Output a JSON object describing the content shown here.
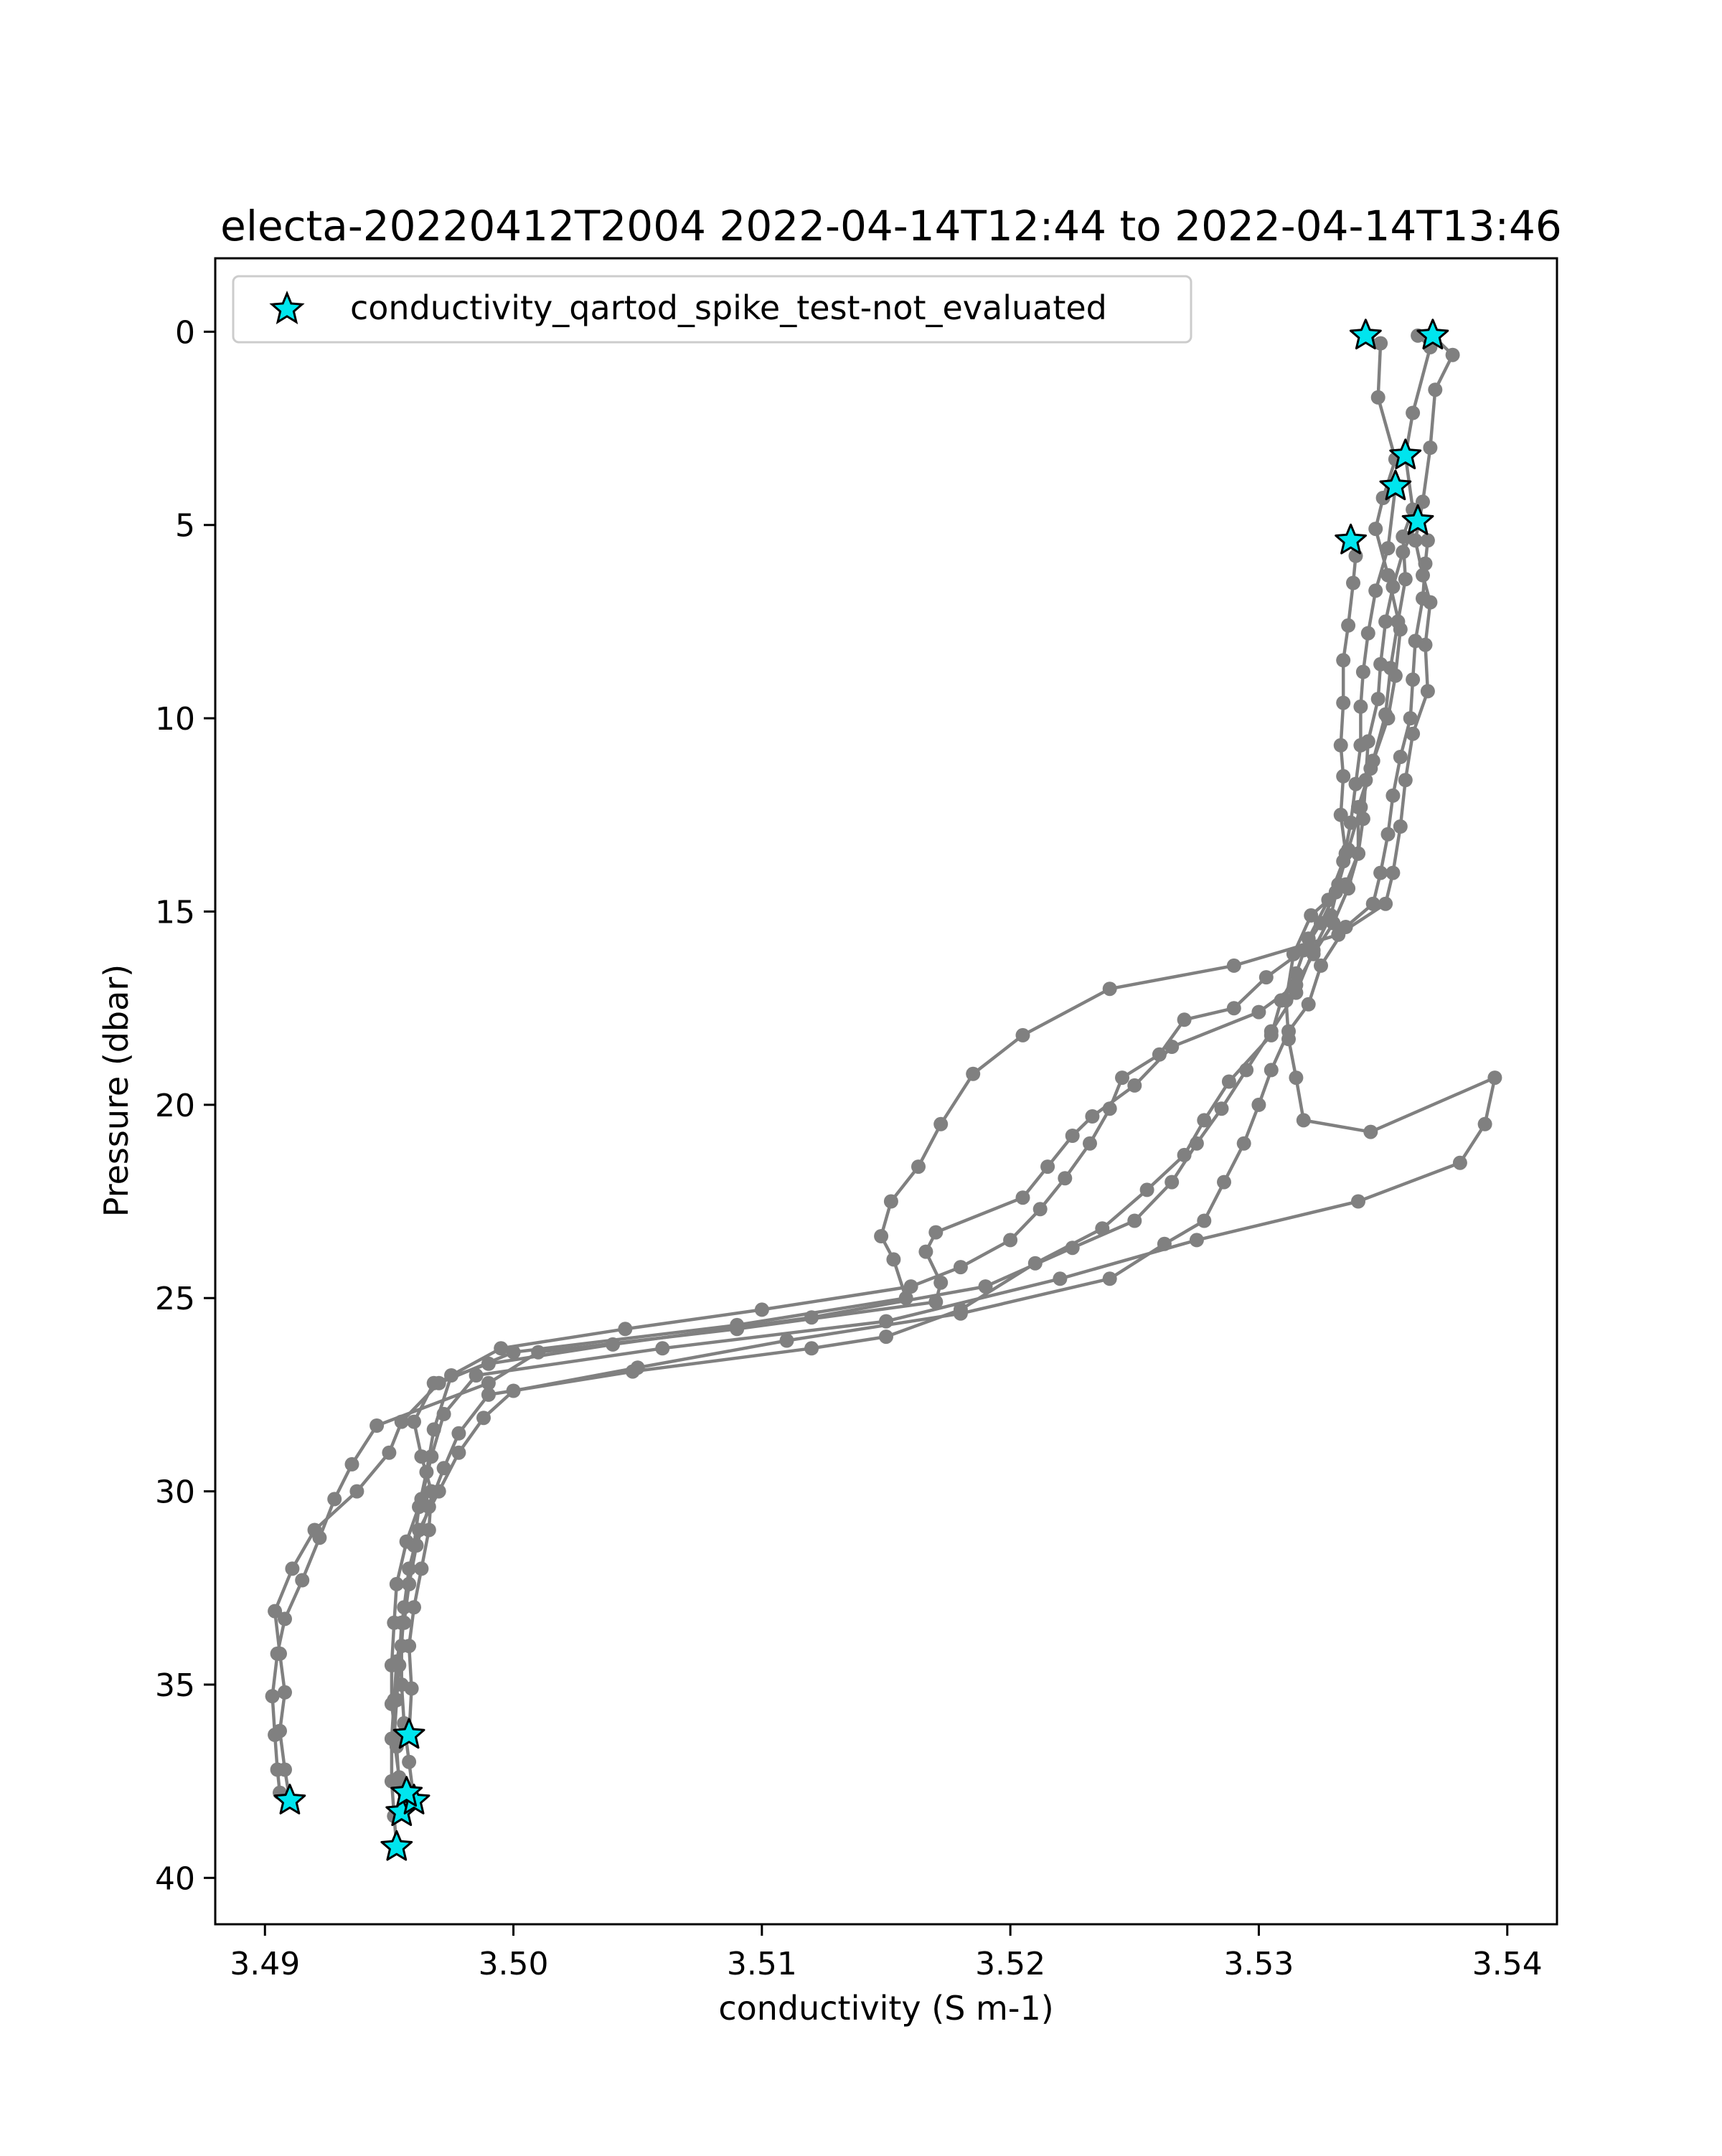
{
  "chart_data": {
    "type": "scatter",
    "title": "electa-20220412T2004 2022-04-14T12:44 to 2022-04-14T13:46",
    "xlabel": "conductivity (S m-1)",
    "ylabel": "Pressure (dbar)",
    "xlim": [
      3.488,
      3.542
    ],
    "ylim": [
      41.2,
      -1.9
    ],
    "y_inverted": true,
    "xticks": [
      3.49,
      3.5,
      3.51,
      3.52,
      3.53,
      3.54
    ],
    "xtick_labels": [
      "3.49",
      "3.50",
      "3.51",
      "3.52",
      "3.53",
      "3.54"
    ],
    "yticks": [
      0,
      5,
      10,
      15,
      20,
      25,
      30,
      35,
      40
    ],
    "ytick_labels": [
      "0",
      "5",
      "10",
      "15",
      "20",
      "25",
      "30",
      "35",
      "40"
    ],
    "grid": false,
    "legend_position": "upper-left",
    "legend": [
      {
        "label": "conductivity_qartod_spike_test-not_evaluated",
        "marker": "star",
        "color": "#00e5ee"
      }
    ],
    "line_color": "#808080",
    "flag_color": "#00e5ee",
    "series": [
      {
        "points": [
          [
            3.5343,
            0.1
          ],
          [
            3.5349,
            0.3
          ],
          [
            3.5348,
            1.7
          ],
          [
            3.5355,
            3.3
          ],
          [
            3.535,
            4.3
          ],
          [
            3.5347,
            5.1
          ],
          [
            3.5352,
            6.3
          ],
          [
            3.5357,
            7.7
          ],
          [
            3.5355,
            8.9
          ],
          [
            3.5352,
            10.0
          ],
          [
            3.5345,
            11.3
          ],
          [
            3.5341,
            12.3
          ],
          [
            3.5336,
            13.4
          ],
          [
            3.5332,
            14.3
          ],
          [
            3.5329,
            15.1
          ],
          [
            3.5322,
            16.0
          ],
          [
            3.5315,
            17.1
          ],
          [
            3.5305,
            18.1
          ],
          [
            3.5295,
            19.1
          ],
          [
            3.5285,
            20.1
          ],
          [
            3.5275,
            21.0
          ],
          [
            3.5265,
            22.0
          ],
          [
            3.525,
            23.0
          ],
          [
            3.5225,
            23.7
          ],
          [
            3.519,
            24.7
          ],
          [
            3.512,
            25.5
          ],
          [
            3.504,
            26.2
          ],
          [
            3.499,
            26.7
          ],
          [
            3.4968,
            27.2
          ],
          [
            3.496,
            28.2
          ],
          [
            3.4963,
            29.1
          ],
          [
            3.4967,
            30.0
          ],
          [
            3.4966,
            31.0
          ],
          [
            3.4963,
            32.0
          ],
          [
            3.496,
            33.0
          ],
          [
            3.4958,
            34.0
          ],
          [
            3.4959,
            35.1
          ],
          [
            3.4958,
            36.3
          ]
        ],
        "flags": [
          0,
          37
        ]
      },
      {
        "points": [
          [
            3.537,
            0.1
          ],
          [
            3.5378,
            0.6
          ],
          [
            3.5371,
            1.5
          ],
          [
            3.5369,
            3.0
          ],
          [
            3.5366,
            4.4
          ],
          [
            3.5363,
            5.4
          ],
          [
            3.5366,
            6.3
          ],
          [
            3.5369,
            7.0
          ],
          [
            3.5367,
            8.1
          ],
          [
            3.5368,
            9.3
          ],
          [
            3.5362,
            10.4
          ],
          [
            3.5359,
            11.6
          ],
          [
            3.5357,
            12.8
          ],
          [
            3.5354,
            14.0
          ],
          [
            3.5351,
            14.8
          ],
          [
            3.5332,
            15.6
          ],
          [
            3.529,
            16.4
          ],
          [
            3.524,
            17.0
          ],
          [
            3.5205,
            18.2
          ],
          [
            3.5185,
            19.2
          ],
          [
            3.5172,
            20.5
          ],
          [
            3.5163,
            21.6
          ],
          [
            3.5152,
            22.5
          ],
          [
            3.5148,
            23.4
          ],
          [
            3.5153,
            24.0
          ],
          [
            3.5158,
            25.0
          ],
          [
            3.509,
            25.7
          ],
          [
            3.5,
            26.4
          ],
          [
            3.497,
            27.2
          ],
          [
            3.4955,
            28.2
          ],
          [
            3.495,
            29.0
          ],
          [
            3.4937,
            30.0
          ],
          [
            3.492,
            31.0
          ],
          [
            3.4911,
            32.0
          ],
          [
            3.4904,
            33.1
          ],
          [
            3.4906,
            34.2
          ],
          [
            3.4908,
            35.2
          ],
          [
            3.4906,
            36.2
          ],
          [
            3.4908,
            37.2
          ],
          [
            3.491,
            38.0
          ]
        ],
        "flags": [
          0,
          39
        ]
      },
      {
        "points": [
          [
            3.5364,
            0.1
          ],
          [
            3.5369,
            0.4
          ],
          [
            3.5362,
            2.1
          ],
          [
            3.5359,
            3.2
          ],
          [
            3.5362,
            4.6
          ],
          [
            3.5358,
            5.3
          ],
          [
            3.5359,
            6.4
          ],
          [
            3.5356,
            7.5
          ],
          [
            3.5353,
            8.7
          ],
          [
            3.5351,
            9.9
          ],
          [
            3.5346,
            11.1
          ],
          [
            3.534,
            12.3
          ],
          [
            3.534,
            13.5
          ],
          [
            3.5335,
            14.3
          ],
          [
            3.5321,
            15.1
          ],
          [
            3.5314,
            16.1
          ],
          [
            3.5311,
            17.3
          ],
          [
            3.5312,
            18.3
          ],
          [
            3.5315,
            19.3
          ],
          [
            3.5318,
            20.4
          ],
          [
            3.5345,
            20.7
          ],
          [
            3.5395,
            19.3
          ],
          [
            3.5391,
            20.5
          ],
          [
            3.5381,
            21.5
          ],
          [
            3.534,
            22.5
          ],
          [
            3.5275,
            23.5
          ],
          [
            3.522,
            24.5
          ],
          [
            3.515,
            25.6
          ],
          [
            3.506,
            26.3
          ],
          [
            3.4985,
            27.0
          ],
          [
            3.4972,
            28.0
          ],
          [
            3.4967,
            29.1
          ],
          [
            3.4963,
            30.2
          ],
          [
            3.4957,
            31.3
          ],
          [
            3.4953,
            32.4
          ],
          [
            3.4952,
            33.4
          ],
          [
            3.4951,
            34.5
          ],
          [
            3.4951,
            35.5
          ],
          [
            3.4953,
            36.6
          ],
          [
            3.4954,
            37.6
          ],
          [
            3.4955,
            38.3
          ]
        ],
        "flags": [
          3,
          40
        ]
      },
      {
        "points": [
          [
            3.5337,
            5.4
          ],
          [
            3.5339,
            5.8
          ],
          [
            3.5338,
            6.5
          ],
          [
            3.5336,
            7.6
          ],
          [
            3.5334,
            8.5
          ],
          [
            3.5334,
            9.6
          ],
          [
            3.5333,
            10.7
          ],
          [
            3.5334,
            11.5
          ],
          [
            3.5333,
            12.5
          ],
          [
            3.5335,
            13.5
          ],
          [
            3.5331,
            14.5
          ],
          [
            3.5325,
            15.3
          ],
          [
            3.5318,
            16.0
          ],
          [
            3.5303,
            16.7
          ],
          [
            3.529,
            17.5
          ],
          [
            3.527,
            17.8
          ],
          [
            3.526,
            18.7
          ],
          [
            3.5245,
            19.3
          ],
          [
            3.524,
            20.1
          ],
          [
            3.5232,
            21.0
          ],
          [
            3.5222,
            21.9
          ],
          [
            3.5212,
            22.7
          ],
          [
            3.52,
            23.5
          ],
          [
            3.518,
            24.2
          ],
          [
            3.516,
            24.7
          ],
          [
            3.51,
            25.3
          ],
          [
            3.5045,
            25.8
          ],
          [
            3.4995,
            26.3
          ],
          [
            3.4975,
            27.0
          ],
          [
            3.4968,
            28.4
          ],
          [
            3.4965,
            29.5
          ],
          [
            3.4962,
            30.4
          ],
          [
            3.496,
            31.4
          ],
          [
            3.4958,
            32.4
          ],
          [
            3.4956,
            33.4
          ],
          [
            3.4953,
            34.4
          ],
          [
            3.4952,
            35.4
          ],
          [
            3.4951,
            36.4
          ],
          [
            3.4951,
            37.5
          ],
          [
            3.4952,
            38.4
          ],
          [
            3.4953,
            39.2
          ]
        ],
        "flags": [
          0,
          40
        ]
      },
      {
        "points": [
          [
            3.5364,
            4.9
          ],
          [
            3.5358,
            5.7
          ],
          [
            3.5354,
            6.6
          ],
          [
            3.5351,
            7.5
          ],
          [
            3.5349,
            8.6
          ],
          [
            3.5348,
            9.5
          ],
          [
            3.5344,
            10.6
          ],
          [
            3.5343,
            11.6
          ],
          [
            3.5342,
            12.6
          ],
          [
            3.534,
            13.5
          ],
          [
            3.5336,
            14.4
          ],
          [
            3.533,
            15.3
          ],
          [
            3.5322,
            16.1
          ],
          [
            3.5315,
            16.9
          ],
          [
            3.53,
            17.6
          ],
          [
            3.5265,
            18.5
          ],
          [
            3.525,
            19.5
          ],
          [
            3.5233,
            20.3
          ],
          [
            3.5225,
            20.8
          ],
          [
            3.5215,
            21.6
          ],
          [
            3.5205,
            22.4
          ],
          [
            3.517,
            23.3
          ],
          [
            3.5166,
            23.8
          ],
          [
            3.5172,
            24.6
          ],
          [
            3.517,
            25.1
          ],
          [
            3.509,
            25.8
          ],
          [
            3.501,
            26.4
          ],
          [
            3.499,
            27.2
          ],
          [
            3.4945,
            28.3
          ],
          [
            3.4935,
            29.3
          ],
          [
            3.4928,
            30.2
          ],
          [
            3.4922,
            31.2
          ],
          [
            3.4915,
            32.3
          ],
          [
            3.4908,
            33.3
          ],
          [
            3.4905,
            34.2
          ],
          [
            3.4903,
            35.3
          ],
          [
            3.4904,
            36.3
          ],
          [
            3.4905,
            37.2
          ],
          [
            3.4906,
            37.8
          ]
        ],
        "flags": [
          0
        ]
      },
      {
        "points": [
          [
            3.5368,
            5.4
          ],
          [
            3.5367,
            6.0
          ],
          [
            3.5366,
            6.9
          ],
          [
            3.5363,
            8.0
          ],
          [
            3.5362,
            9.0
          ],
          [
            3.5361,
            10.0
          ],
          [
            3.5357,
            11.0
          ],
          [
            3.5354,
            12.0
          ],
          [
            3.5352,
            13.0
          ],
          [
            3.5349,
            14.0
          ],
          [
            3.5346,
            14.8
          ],
          [
            3.5335,
            15.4
          ],
          [
            3.5325,
            16.4
          ],
          [
            3.532,
            17.4
          ],
          [
            3.5312,
            18.1
          ],
          [
            3.5305,
            19.1
          ],
          [
            3.53,
            20.0
          ],
          [
            3.5294,
            21.0
          ],
          [
            3.5286,
            22.0
          ],
          [
            3.5278,
            23.0
          ],
          [
            3.5262,
            23.6
          ],
          [
            3.524,
            24.5
          ],
          [
            3.518,
            25.4
          ],
          [
            3.511,
            26.1
          ],
          [
            3.505,
            26.8
          ],
          [
            3.5,
            27.4
          ],
          [
            3.4988,
            28.1
          ],
          [
            3.4978,
            29.0
          ],
          [
            3.497,
            30.0
          ],
          [
            3.4962,
            31.0
          ],
          [
            3.4958,
            32.0
          ],
          [
            3.4956,
            33.0
          ],
          [
            3.4955,
            34.0
          ],
          [
            3.4955,
            35.0
          ],
          [
            3.4956,
            36.0
          ],
          [
            3.4958,
            37.0
          ],
          [
            3.496,
            38.0
          ]
        ],
        "flags": [
          36
        ]
      },
      {
        "points": [
          [
            3.5355,
            4.0
          ],
          [
            3.5352,
            5.6
          ],
          [
            3.5347,
            6.7
          ],
          [
            3.5344,
            7.8
          ],
          [
            3.5342,
            8.8
          ],
          [
            3.5341,
            9.7
          ],
          [
            3.5341,
            10.7
          ],
          [
            3.5339,
            11.7
          ],
          [
            3.5337,
            12.7
          ],
          [
            3.5334,
            13.7
          ],
          [
            3.5328,
            14.7
          ],
          [
            3.532,
            15.7
          ],
          [
            3.5315,
            16.6
          ],
          [
            3.5309,
            17.3
          ],
          [
            3.5305,
            18.2
          ],
          [
            3.5288,
            19.4
          ],
          [
            3.5278,
            20.4
          ],
          [
            3.527,
            21.3
          ],
          [
            3.5255,
            22.2
          ],
          [
            3.5237,
            23.2
          ],
          [
            3.521,
            24.1
          ],
          [
            3.518,
            25.3
          ],
          [
            3.515,
            26.0
          ],
          [
            3.512,
            26.3
          ],
          [
            3.5048,
            26.9
          ],
          [
            3.499,
            27.5
          ],
          [
            3.4978,
            28.5
          ],
          [
            3.4972,
            29.4
          ],
          [
            3.4966,
            30.4
          ],
          [
            3.4961,
            31.4
          ],
          [
            3.4958,
            32.4
          ],
          [
            3.4955,
            33.4
          ],
          [
            3.4954,
            34.5
          ],
          [
            3.4953,
            35.4
          ],
          [
            3.4952,
            36.4
          ],
          [
            3.4954,
            37.4
          ],
          [
            3.4957,
            37.8
          ]
        ],
        "flags": [
          0,
          36
        ]
      }
    ]
  }
}
